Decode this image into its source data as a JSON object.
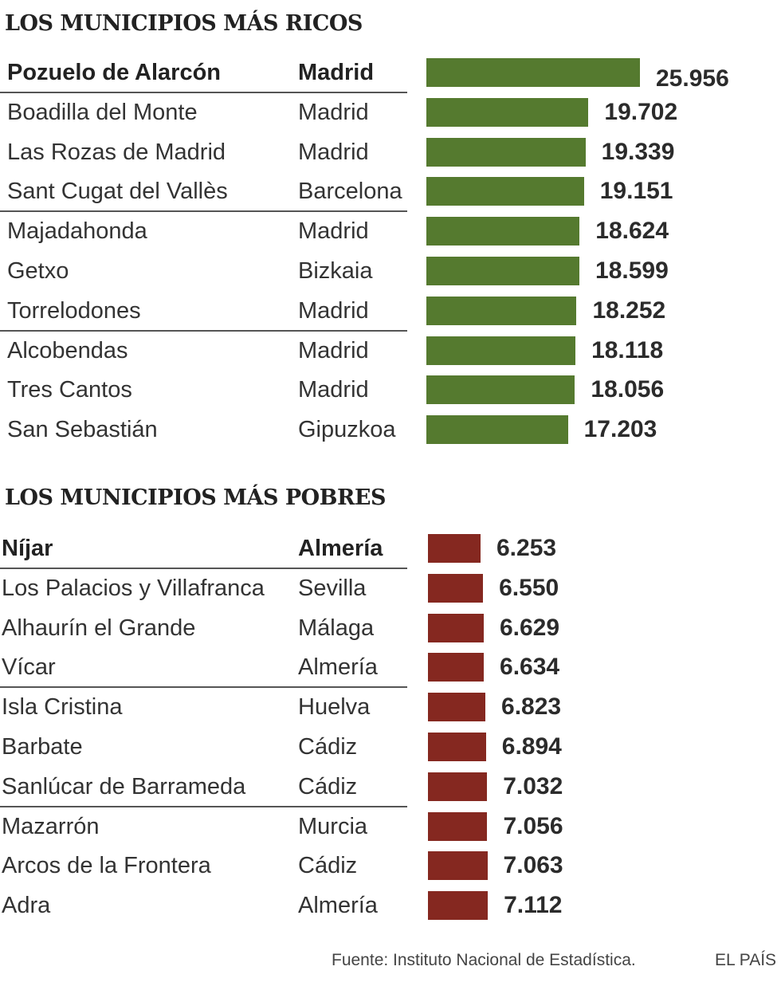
{
  "chart_data": [
    {
      "type": "bar",
      "title": "LOS MUNICIPIOS MÁS RICOS",
      "categories": [
        "Pozuelo de Alarcón",
        "Boadilla del Monte",
        "Las Rozas de Madrid",
        "Sant Cugat del Vallès",
        "Majadahonda",
        "Getxo",
        "Torrelodones",
        "Alcobendas",
        "Tres Cantos",
        "San Sebastián"
      ],
      "provinces": [
        "Madrid",
        "Madrid",
        "Madrid",
        "Barcelona",
        "Madrid",
        "Bizkaia",
        "Madrid",
        "Madrid",
        "Madrid",
        "Gipuzkoa"
      ],
      "values": [
        25956,
        19702,
        19339,
        19151,
        18624,
        18599,
        18252,
        18118,
        18056,
        17203
      ],
      "labels": [
        "25.956",
        "19.702",
        "19.339",
        "19.151",
        "18.624",
        "18.599",
        "18.252",
        "18.118",
        "18.056",
        "17.203"
      ],
      "bar_color": "#557a2f"
    },
    {
      "type": "bar",
      "title": "LOS MUNICIPIOS MÁS POBRES",
      "categories": [
        "Níjar",
        "Los Palacios y Villafranca",
        "Alhaurín el Grande",
        "Vícar",
        "Isla Cristina",
        "Barbate",
        "Sanlúcar de Barrameda",
        "Mazarrón",
        "Arcos de la Frontera",
        "Adra"
      ],
      "provinces": [
        "Almería",
        "Sevilla",
        "Málaga",
        "Almería",
        "Huelva",
        "Cádiz",
        "Cádiz",
        "Murcia",
        "Cádiz",
        "Almería"
      ],
      "values": [
        6253,
        6550,
        6629,
        6634,
        6823,
        6894,
        7032,
        7056,
        7063,
        7112
      ],
      "labels": [
        "6.253",
        "6.550",
        "6.629",
        "6.634",
        "6.823",
        "6.894",
        "7.032",
        "7.056",
        "7.063",
        "7.112"
      ],
      "bar_color": "#852820"
    }
  ],
  "footer": {
    "source": "Fuente: Instituto Nacional de Estadística.",
    "brand": "EL PAÍS"
  }
}
